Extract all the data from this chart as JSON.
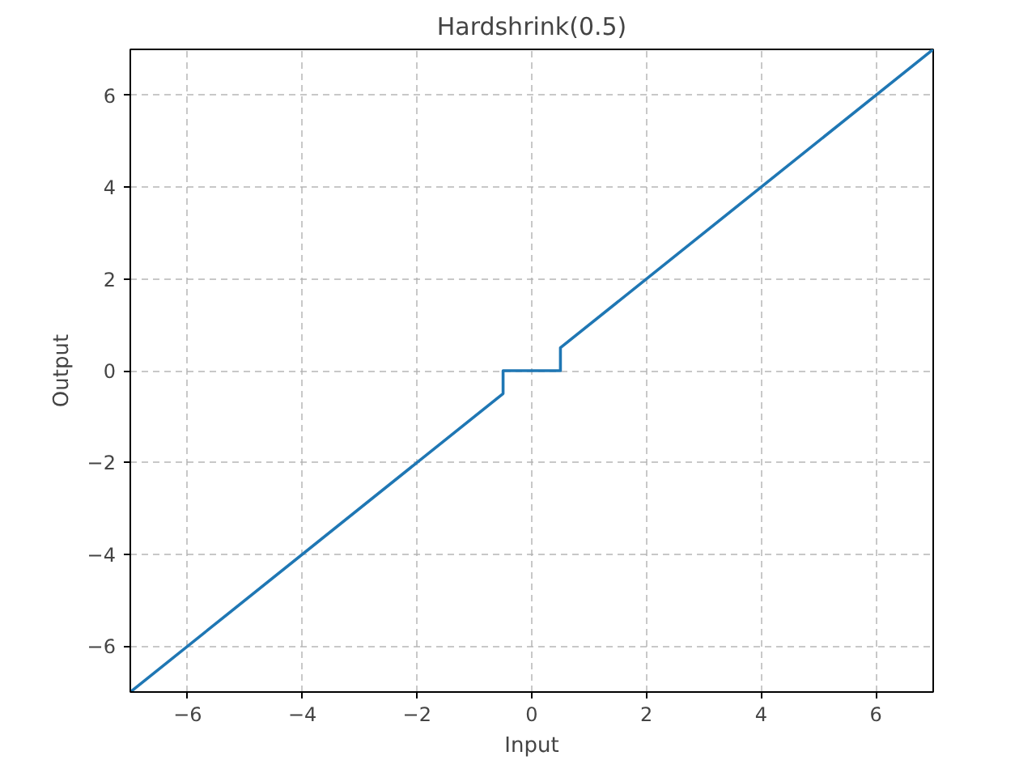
{
  "chart_data": {
    "type": "line",
    "title": "Hardshrink(0.5)",
    "xlabel": "Input",
    "ylabel": "Output",
    "x": [
      -7,
      -0.5,
      -0.5,
      0.5,
      0.5,
      7
    ],
    "series": [
      {
        "color": "#1f77b4",
        "values": [
          -7,
          -0.5,
          0,
          0,
          0.5,
          7
        ]
      }
    ],
    "xlim": [
      -7,
      7
    ],
    "ylim": [
      -7,
      7
    ],
    "xticks": [
      {
        "value": -6,
        "label": "−6"
      },
      {
        "value": -4,
        "label": "−4"
      },
      {
        "value": -2,
        "label": "−2"
      },
      0,
      2,
      4,
      6
    ],
    "yticks": [
      {
        "value": -6,
        "label": "−6"
      },
      {
        "value": -4,
        "label": "−4"
      },
      {
        "value": -2,
        "label": "−2"
      },
      0,
      2,
      4,
      6
    ],
    "grid": true,
    "line_style": "solid",
    "marker": "none"
  }
}
